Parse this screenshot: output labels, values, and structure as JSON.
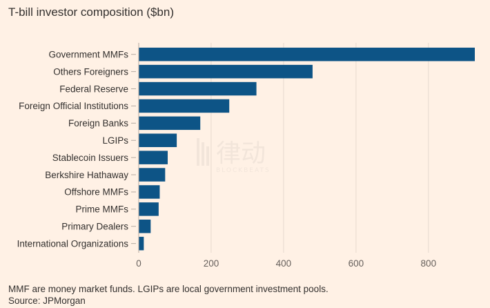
{
  "title": "T-bill investor composition ($bn)",
  "footnote": {
    "line1": "MMF are money market funds. LGIPs are local government investment pools.",
    "line2": "Source: JPMorgan"
  },
  "watermark": {
    "text_cn": "律动",
    "text_en": "BLOCKBEATS"
  },
  "colors": {
    "bar": "#0d5486",
    "background": "#fff1e5",
    "grid": "#e6d9ce"
  },
  "chart_data": {
    "type": "bar",
    "orientation": "horizontal",
    "title": "T-bill investor composition ($bn)",
    "categories": [
      "Government MMFs",
      "Others Foreigners",
      "Federal Reserve",
      "Foreign Official Institutions",
      "Foreign Banks",
      "LGIPs",
      "Stablecoin Issuers",
      "Berkshire Hathaway",
      "Offshore MMFs",
      "Prime MMFs",
      "Primary Dealers",
      "International Organizations"
    ],
    "values": [
      928,
      480,
      325,
      250,
      170,
      105,
      80,
      73,
      58,
      55,
      33,
      14
    ],
    "xlim": [
      0,
      928
    ],
    "xticks": [
      0,
      200,
      400,
      600,
      800
    ],
    "xlabel": "",
    "ylabel": "",
    "grid": "vertical",
    "legend": "none"
  }
}
